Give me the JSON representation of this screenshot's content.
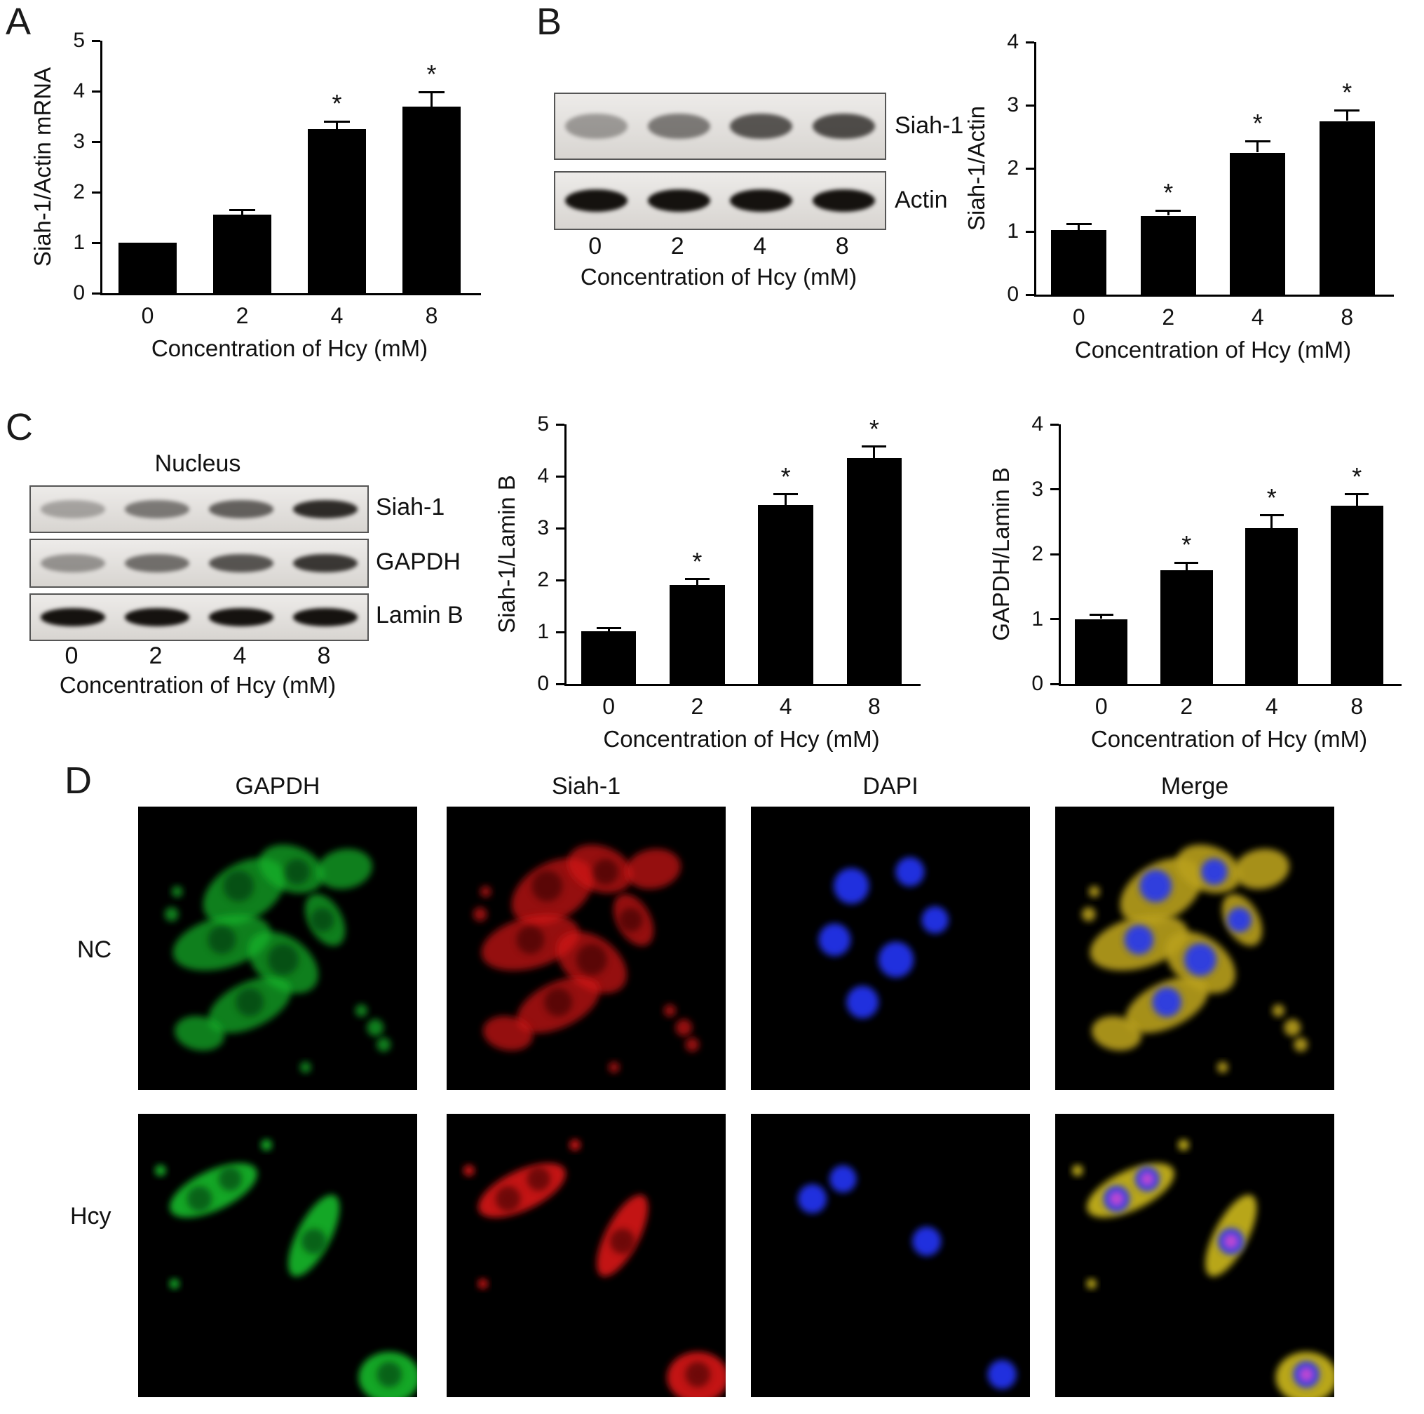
{
  "panel_a": {
    "label": "A"
  },
  "panel_b": {
    "label": "B",
    "blot": {
      "rows": [
        {
          "label": "Siah-1",
          "band_intensities": [
            0.35,
            0.5,
            0.68,
            0.72
          ]
        },
        {
          "label": "Actin",
          "band_intensities": [
            1,
            1,
            1,
            1
          ]
        }
      ],
      "lanes": [
        "0",
        "2",
        "4",
        "8"
      ],
      "xlabel": "Concentration of Hcy (mM)"
    }
  },
  "panel_c": {
    "label": "C",
    "blot": {
      "title": "Nucleus",
      "rows": [
        {
          "label": "Siah-1",
          "band_intensities": [
            0.3,
            0.5,
            0.62,
            0.88
          ]
        },
        {
          "label": "GAPDH",
          "band_intensities": [
            0.38,
            0.55,
            0.68,
            0.82
          ]
        },
        {
          "label": "Lamin B",
          "band_intensities": [
            1,
            1,
            1,
            1
          ]
        }
      ],
      "lanes": [
        "0",
        "2",
        "4",
        "8"
      ],
      "xlabel": "Concentration of Hcy (mM)"
    }
  },
  "panel_d": {
    "label": "D",
    "columns": [
      "GAPDH",
      "Siah-1",
      "DAPI",
      "Merge"
    ],
    "rows": [
      "NC",
      "Hcy"
    ],
    "channel_colors": {
      "GAPDH": "#16b62c",
      "Siah-1": "#d41414",
      "DAPI": "#2433e6",
      "Merge": "#cdb91a"
    }
  },
  "chart_data": [
    {
      "type": "bar",
      "panel": "A",
      "categories": [
        "0",
        "2",
        "4",
        "8"
      ],
      "values": [
        1.0,
        1.55,
        3.25,
        3.7
      ],
      "errors": [
        0,
        0.1,
        0.15,
        0.28
      ],
      "significance": [
        "",
        "",
        "*",
        "*"
      ],
      "xlabel": "Concentration of Hcy (mM)",
      "ylabel": "Siah-1/Actin mRNA",
      "ylim": [
        0,
        5
      ],
      "yticks": [
        0,
        1,
        2,
        3,
        4,
        5
      ],
      "bar_color": "#000000"
    },
    {
      "type": "bar",
      "panel": "B",
      "categories": [
        "0",
        "2",
        "4",
        "8"
      ],
      "values": [
        1.02,
        1.25,
        2.25,
        2.75
      ],
      "errors": [
        0.1,
        0.08,
        0.18,
        0.17
      ],
      "significance": [
        "",
        "*",
        "*",
        "*"
      ],
      "xlabel": "Concentration of Hcy (mM)",
      "ylabel": "Siah-1/Actin",
      "ylim": [
        0,
        4
      ],
      "yticks": [
        0,
        1,
        2,
        3,
        4
      ],
      "bar_color": "#000000"
    },
    {
      "type": "bar",
      "panel": "C",
      "categories": [
        "0",
        "2",
        "4",
        "8"
      ],
      "values": [
        1.02,
        1.9,
        3.45,
        4.35
      ],
      "errors": [
        0.06,
        0.12,
        0.2,
        0.22
      ],
      "significance": [
        "",
        "*",
        "*",
        "*"
      ],
      "xlabel": "Concentration of Hcy (mM)",
      "ylabel": "Siah-1/Lamin B",
      "ylim": [
        0,
        5
      ],
      "yticks": [
        0,
        1,
        2,
        3,
        4,
        5
      ],
      "bar_color": "#000000"
    },
    {
      "type": "bar",
      "panel": "C",
      "categories": [
        "0",
        "2",
        "4",
        "8"
      ],
      "values": [
        1.0,
        1.75,
        2.4,
        2.75
      ],
      "errors": [
        0.07,
        0.12,
        0.2,
        0.17
      ],
      "significance": [
        "",
        "*",
        "*",
        "*"
      ],
      "xlabel": "Concentration of Hcy (mM)",
      "ylabel": "GAPDH/Lamin B",
      "ylim": [
        0,
        4
      ],
      "yticks": [
        0,
        1,
        2,
        3,
        4
      ],
      "bar_color": "#000000"
    }
  ]
}
